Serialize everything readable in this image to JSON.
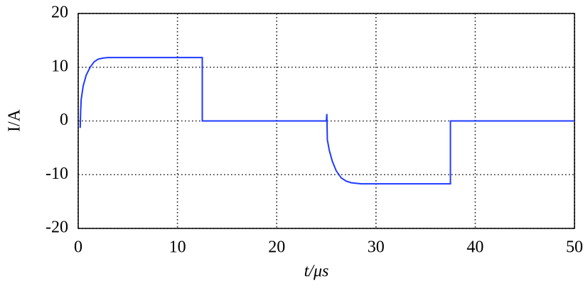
{
  "chart_data": {
    "type": "line",
    "x_label": "t/μs",
    "y_label": "I/A",
    "xlim": [
      0,
      50
    ],
    "ylim": [
      -20,
      20
    ],
    "xticks": [
      0,
      10,
      20,
      30,
      40,
      50
    ],
    "yticks": [
      -20,
      -10,
      0,
      10,
      20
    ],
    "grid": true,
    "x": [
      0.2,
      0.25,
      0.3,
      0.5,
      0.8,
      1.2,
      1.6,
      2,
      2.5,
      3,
      12.5,
      12.5,
      25,
      25.05,
      25.1,
      25.3,
      25.6,
      26,
      26.5,
      27,
      27.5,
      28.5,
      37.5,
      37.5,
      50
    ],
    "series": [
      {
        "color": "#1f3bff",
        "values": [
          -1.3,
          2,
          4,
          6.5,
          8.5,
          10,
          11,
          11.5,
          11.7,
          11.8,
          11.8,
          0,
          0,
          1.3,
          -3.5,
          -5.5,
          -7.5,
          -9.3,
          -10.6,
          -11.2,
          -11.5,
          -11.7,
          -11.7,
          0,
          0
        ]
      }
    ]
  }
}
